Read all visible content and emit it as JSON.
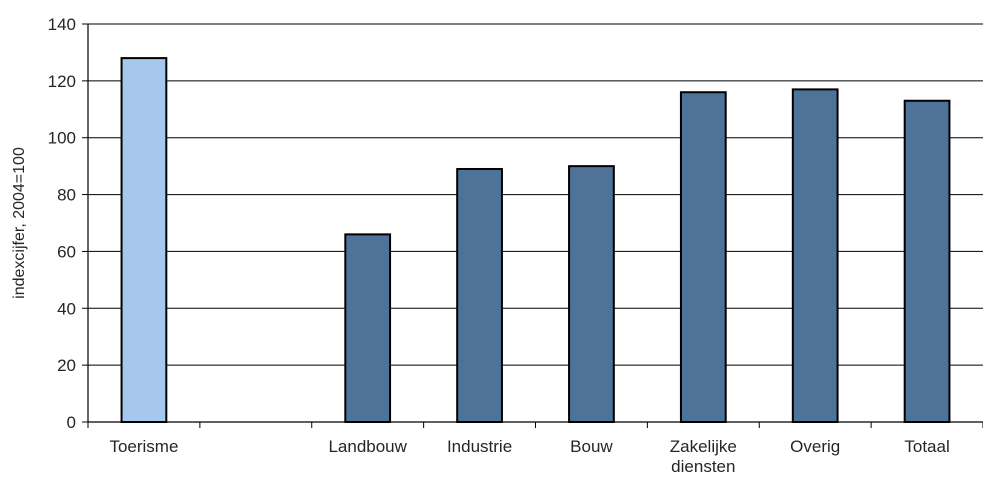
{
  "chart_data": {
    "type": "bar",
    "title": "",
    "xlabel": "",
    "ylabel": "indexcijfer,  2004=100",
    "ylim": [
      0,
      140
    ],
    "yticks": [
      0,
      20,
      40,
      60,
      80,
      100,
      120,
      140
    ],
    "grid": true,
    "legend": "none",
    "categories": [
      {
        "label": [
          "Toerisme"
        ],
        "value": 128,
        "color": "#a6c8ec"
      },
      {
        "label": [
          ""
        ],
        "value": null,
        "color": "#4f7299"
      },
      {
        "label": [
          "Landbouw"
        ],
        "value": 66,
        "color": "#4f7299"
      },
      {
        "label": [
          "Industrie"
        ],
        "value": 89,
        "color": "#4f7299"
      },
      {
        "label": [
          "Bouw"
        ],
        "value": 90,
        "color": "#4f7299"
      },
      {
        "label": [
          "Zakelijke",
          "diensten"
        ],
        "value": 116,
        "color": "#4f7299"
      },
      {
        "label": [
          "Overig"
        ],
        "value": 117,
        "color": "#4f7299"
      },
      {
        "label": [
          "Totaal"
        ],
        "value": 113,
        "color": "#4f7299"
      }
    ]
  }
}
